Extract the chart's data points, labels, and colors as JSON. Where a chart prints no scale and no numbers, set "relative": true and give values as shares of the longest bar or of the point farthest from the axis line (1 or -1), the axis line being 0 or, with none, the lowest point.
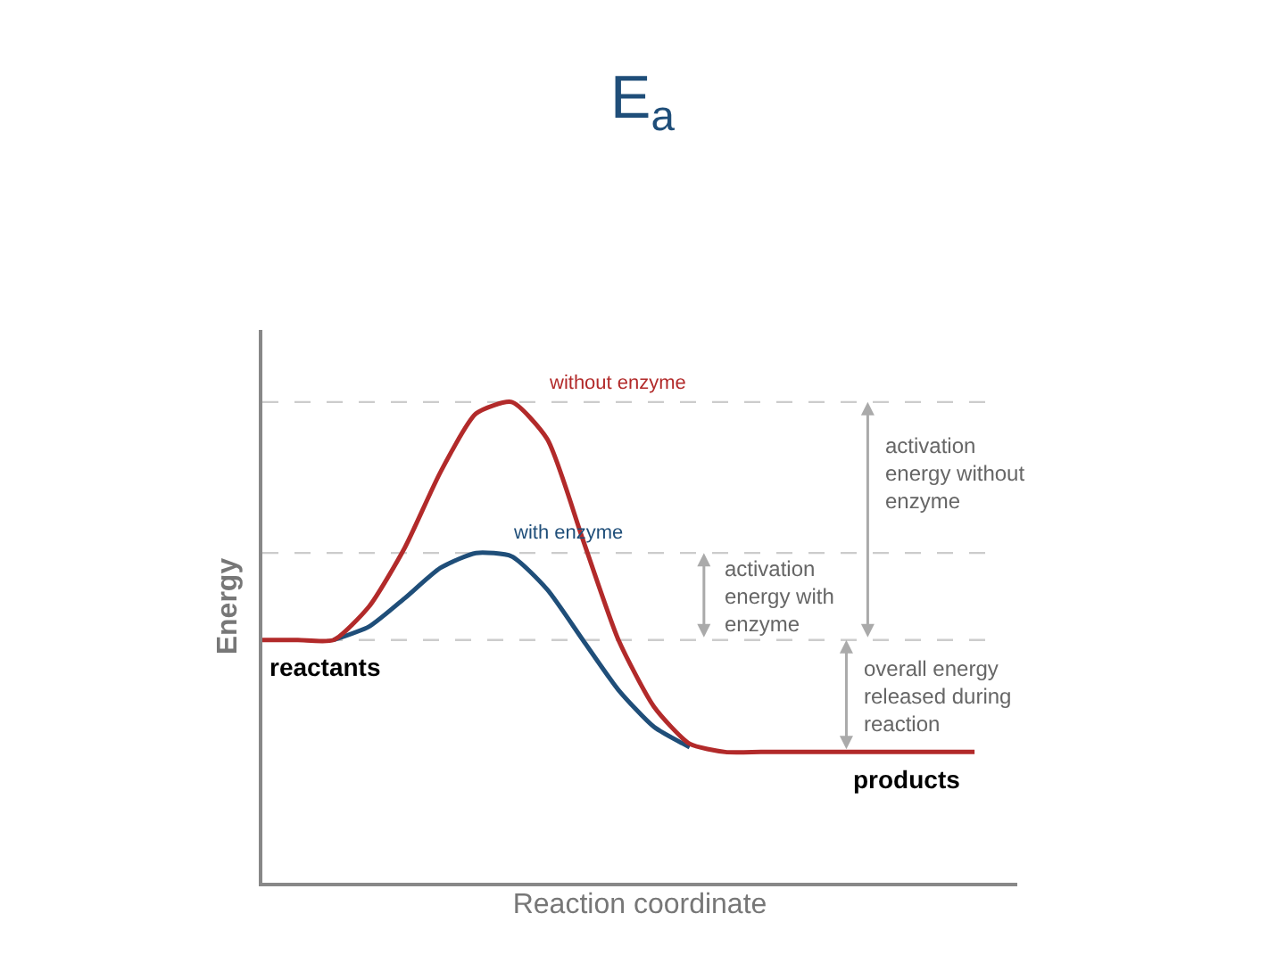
{
  "chart_data": {
    "type": "line",
    "title": "E$_{a}$",
    "xlabel": "Reaction coordinate",
    "ylabel": "Energy",
    "relative": true,
    "legend": false,
    "grid": false,
    "tick_labels": false,
    "marker": "none",
    "line_style": "solid",
    "categories": [
      null,
      null,
      null,
      null,
      null,
      null,
      null,
      null,
      null,
      null,
      null,
      null,
      null,
      null,
      null,
      null,
      null,
      null,
      null,
      null,
      null
    ],
    "series": [
      {
        "name": "without enzyme",
        "color": "#b22a2a",
        "values": [
          0.505,
          0.505,
          0.505,
          0.575,
          0.697,
          0.854,
          0.976,
          1,
          0.923,
          0.714,
          0.505,
          0.366,
          0.289,
          0.272,
          0.272,
          0.272,
          0.272,
          0.272,
          0.272,
          0.272,
          0.272
        ]
      },
      {
        "name": "with enzyme",
        "color": "#1f4e79",
        "values": [
          null,
          null,
          0.505,
          0.533,
          0.592,
          0.655,
          0.686,
          0.679,
          0.61,
          0.505,
          0.401,
          0.324,
          0.282,
          null,
          null,
          null,
          null,
          null,
          null,
          null,
          null
        ]
      }
    ],
    "ref_lines": [
      {
        "axis": "y",
        "value": 1,
        "color": "#cccccc",
        "line_style": "dashed"
      },
      {
        "axis": "y",
        "value": 0.686,
        "color": "#cccccc",
        "line_style": "dashed"
      },
      {
        "axis": "y",
        "value": 0.505,
        "color": "#cccccc",
        "line_style": "dashed"
      }
    ],
    "annotations": [
      "reactants",
      "products",
      "activation\nenergy without\nenzyme",
      "activation\nenergy with\nenzyme",
      "overall energy\nreleased during\nreaction"
    ]
  }
}
